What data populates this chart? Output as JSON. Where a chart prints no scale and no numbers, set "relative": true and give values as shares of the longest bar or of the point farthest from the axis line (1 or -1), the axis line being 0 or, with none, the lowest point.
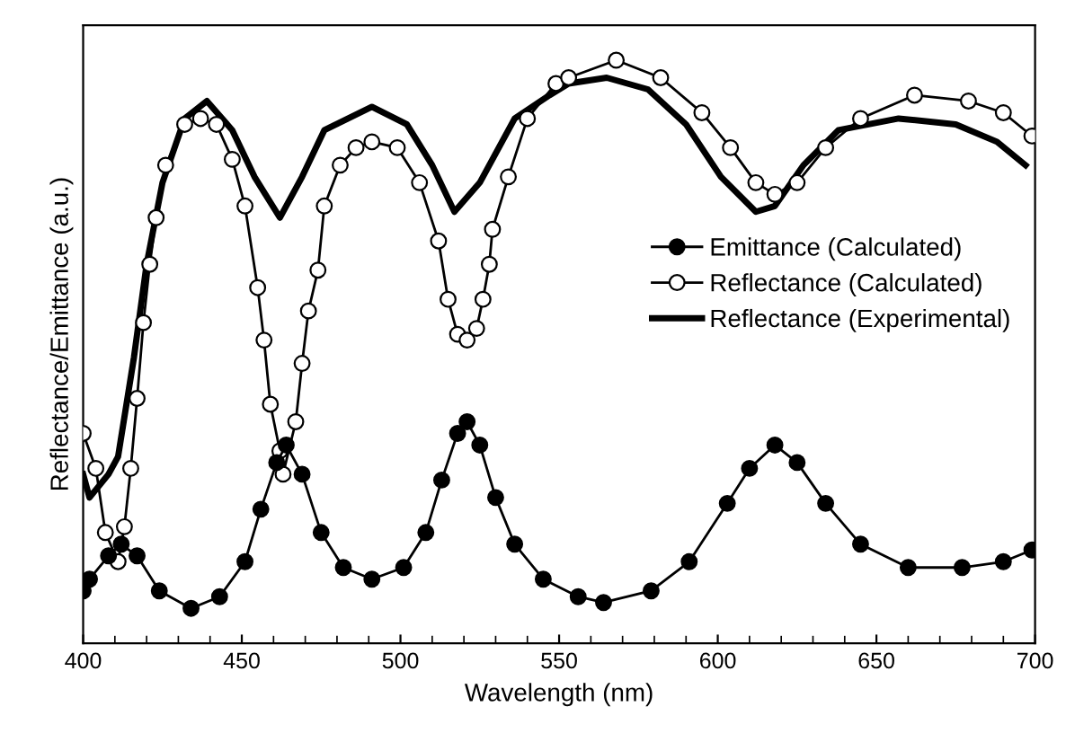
{
  "chart_data": {
    "type": "line",
    "relative": true,
    "xlabel": "Wavelength (nm)",
    "ylabel": "Reflectance/Emittance (a.u.)",
    "xlim": [
      400,
      700
    ],
    "xticks": [
      400,
      450,
      500,
      550,
      600,
      650,
      700
    ],
    "legend": "right",
    "grid": false,
    "series": [
      {
        "name": "Emittance (Calculated)",
        "color": "#000000",
        "marker": "circle",
        "x": [
          400,
          402,
          408,
          412,
          417,
          424,
          434,
          443,
          451,
          456,
          461,
          464,
          469,
          475,
          482,
          491,
          501,
          508,
          513,
          518,
          521,
          525,
          530,
          536,
          545,
          556,
          564,
          579,
          591,
          603,
          610,
          618,
          625,
          634,
          645,
          660,
          677,
          690,
          699
        ],
        "values": [
          0.09,
          0.11,
          0.15,
          0.17,
          0.15,
          0.09,
          0.06,
          0.08,
          0.14,
          0.23,
          0.31,
          0.34,
          0.29,
          0.19,
          0.13,
          0.11,
          0.13,
          0.19,
          0.28,
          0.36,
          0.38,
          0.34,
          0.25,
          0.17,
          0.11,
          0.08,
          0.07,
          0.09,
          0.14,
          0.24,
          0.3,
          0.34,
          0.31,
          0.24,
          0.17,
          0.13,
          0.13,
          0.14,
          0.16
        ]
      },
      {
        "name": "Reflectance (Calculated)",
        "color": "#000000",
        "marker": "circle",
        "x": [
          400,
          404,
          407,
          411,
          413,
          415,
          417,
          419,
          421,
          423,
          426,
          432,
          437,
          442,
          447,
          451,
          455,
          457,
          459,
          462,
          463,
          467,
          469,
          471,
          474,
          476,
          481,
          486,
          491,
          499,
          506,
          512,
          515,
          518,
          521,
          524,
          526,
          528,
          529,
          534,
          540,
          549,
          553,
          568,
          582,
          595,
          604,
          612,
          618,
          625,
          634,
          645,
          662,
          679,
          690,
          699
        ],
        "values": [
          0.36,
          0.3,
          0.19,
          0.14,
          0.2,
          0.3,
          0.42,
          0.55,
          0.65,
          0.73,
          0.82,
          0.89,
          0.9,
          0.89,
          0.83,
          0.75,
          0.61,
          0.52,
          0.41,
          0.33,
          0.29,
          0.38,
          0.48,
          0.57,
          0.64,
          0.75,
          0.82,
          0.85,
          0.86,
          0.85,
          0.79,
          0.69,
          0.59,
          0.53,
          0.52,
          0.54,
          0.59,
          0.65,
          0.71,
          0.8,
          0.9,
          0.96,
          0.97,
          1.0,
          0.97,
          0.91,
          0.85,
          0.79,
          0.77,
          0.79,
          0.85,
          0.9,
          0.94,
          0.93,
          0.91,
          0.87
        ]
      },
      {
        "name": "Reflectance (Experimental)",
        "color": "#000000",
        "marker": "none",
        "x": [
          400,
          402,
          408,
          411,
          416,
          420,
          425,
          432,
          439,
          447,
          454,
          462,
          469,
          476,
          491,
          502,
          510,
          517,
          525,
          536,
          547,
          553,
          565,
          578,
          590,
          601,
          612,
          618,
          627,
          638,
          657,
          675,
          688,
          697
        ],
        "values": [
          0.29,
          0.25,
          0.29,
          0.32,
          0.49,
          0.65,
          0.79,
          0.9,
          0.93,
          0.88,
          0.8,
          0.73,
          0.8,
          0.88,
          0.92,
          0.89,
          0.82,
          0.74,
          0.79,
          0.9,
          0.94,
          0.96,
          0.97,
          0.95,
          0.89,
          0.8,
          0.74,
          0.75,
          0.82,
          0.88,
          0.9,
          0.89,
          0.86,
          0.82
        ]
      }
    ]
  }
}
